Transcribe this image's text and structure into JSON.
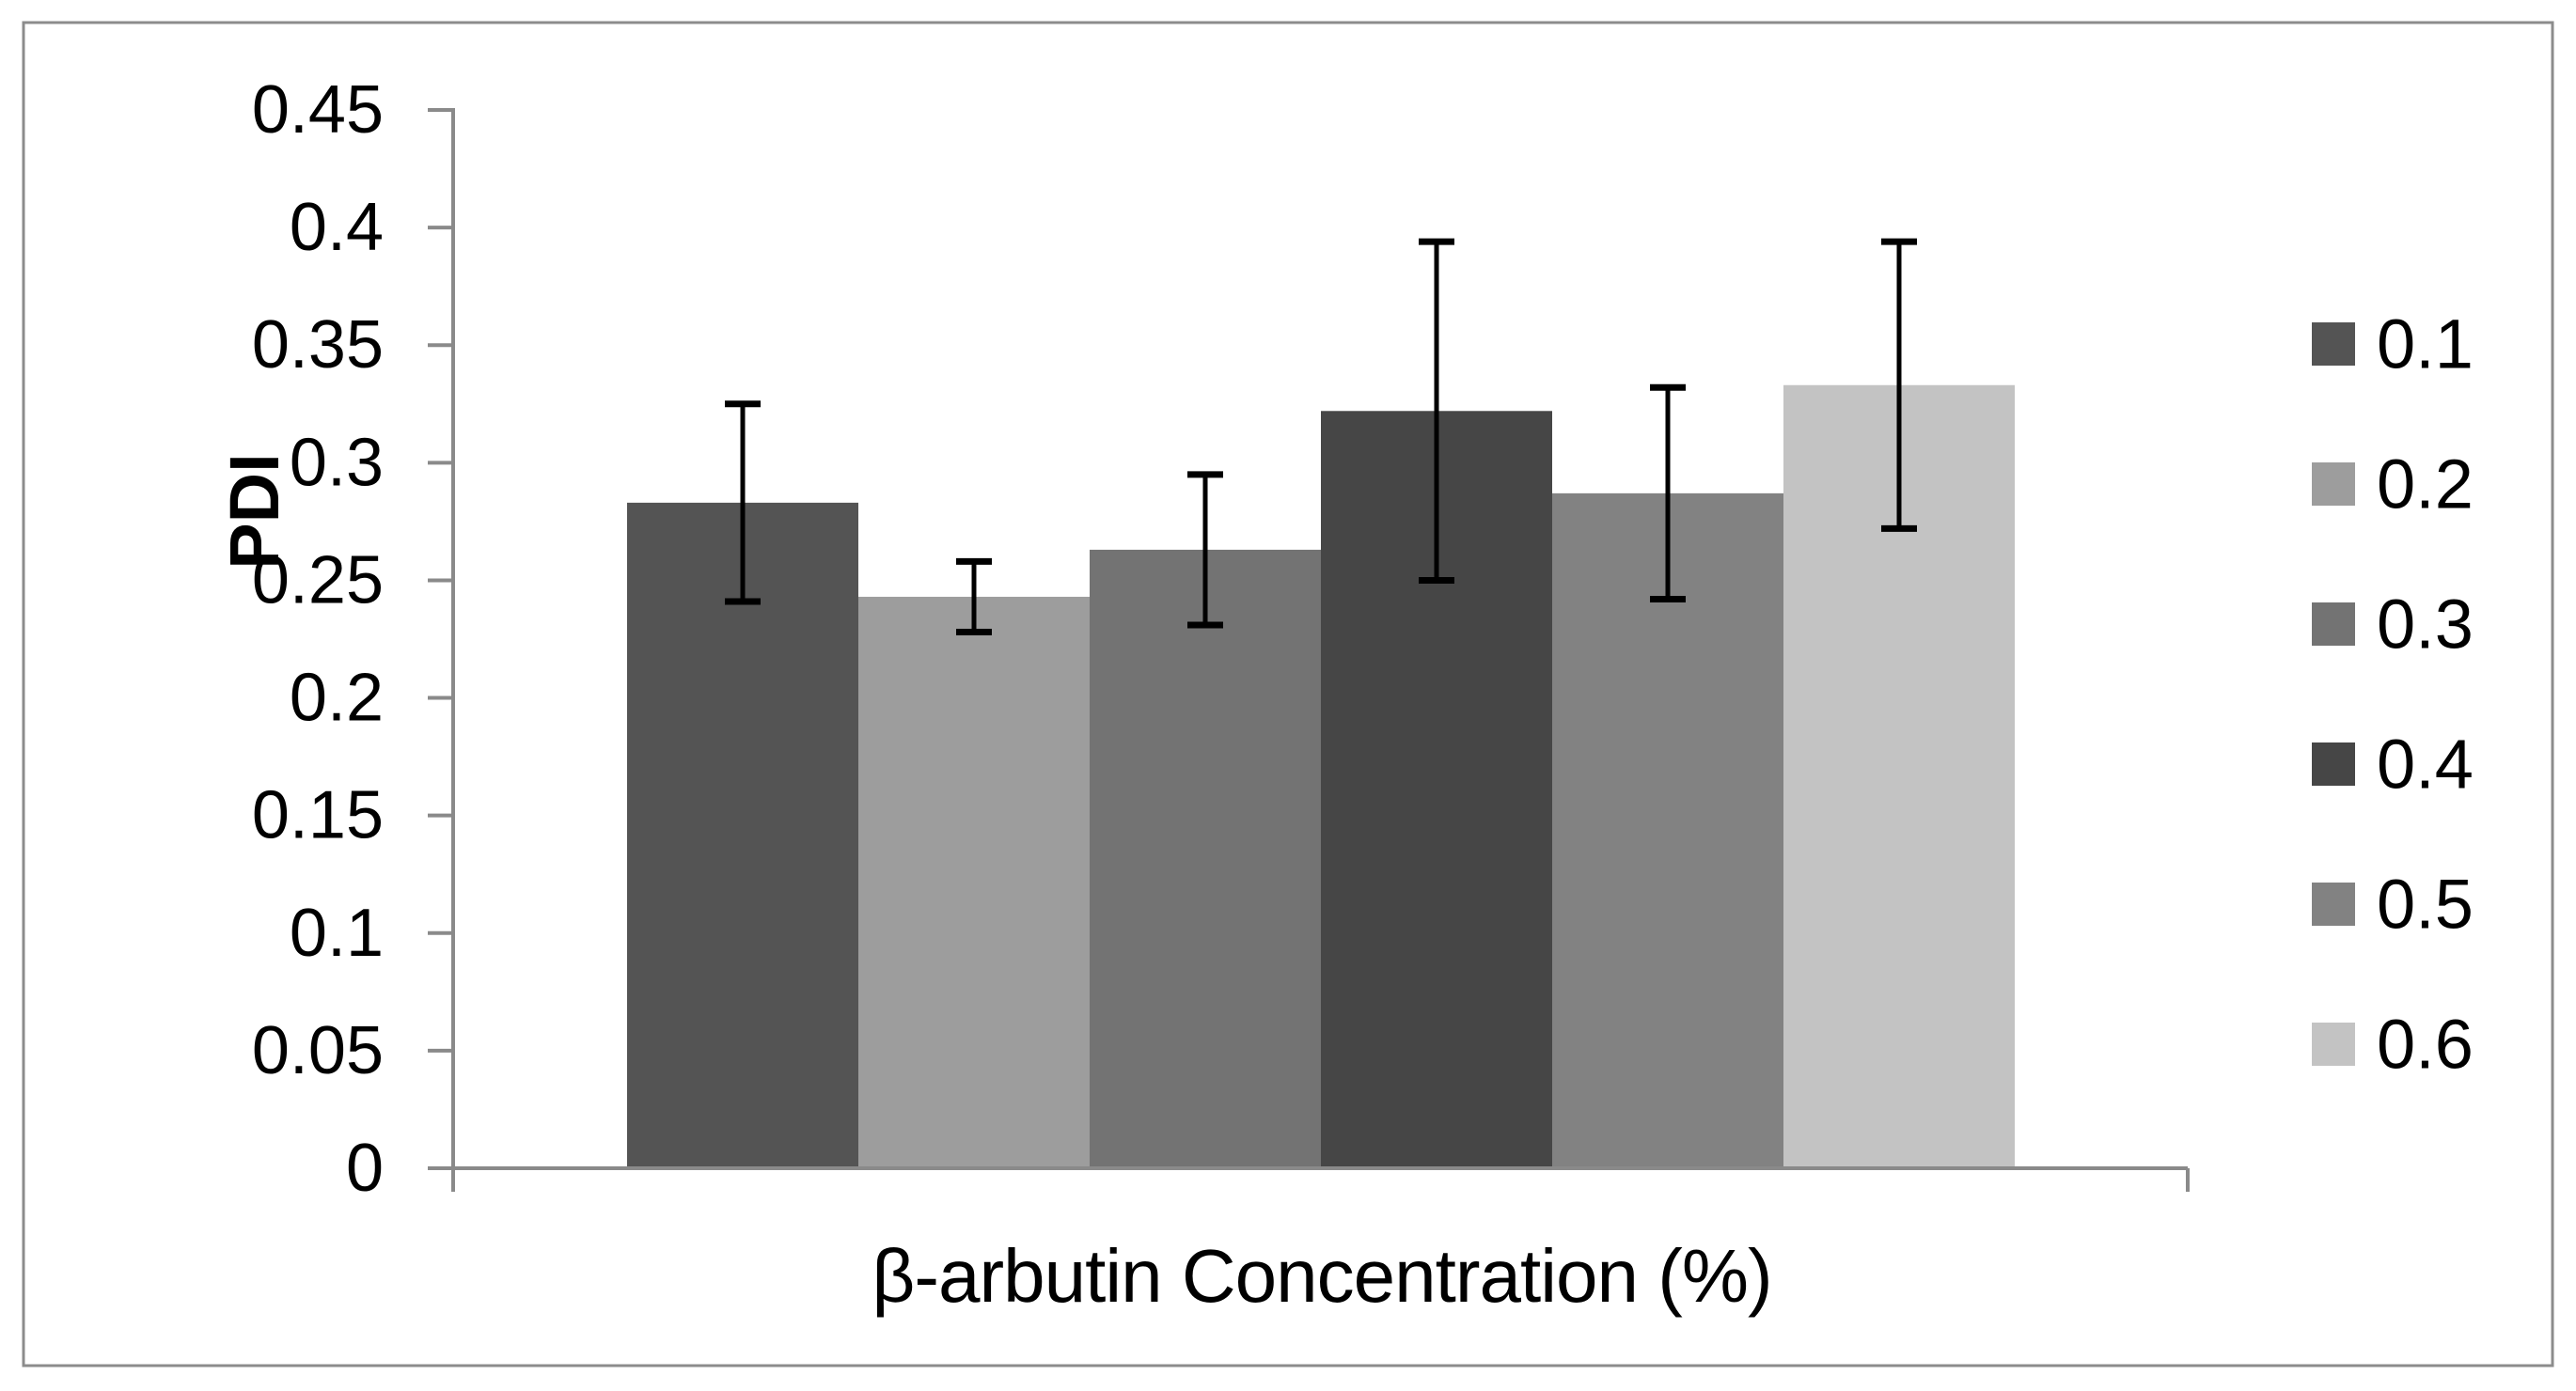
{
  "chart_data": {
    "type": "bar",
    "title": "",
    "xlabel": "β-arbutin Concentration (%)",
    "ylabel": "PDI",
    "ylim": [
      0,
      0.45
    ],
    "ytick_step": 0.05,
    "yticks": [
      "0",
      "0.05",
      "0.1",
      "0.15",
      "0.2",
      "0.25",
      "0.3",
      "0.35",
      "0.4",
      "0.45"
    ],
    "grid": false,
    "legend_position": "right",
    "categories": [
      "0.1",
      "0.2",
      "0.3",
      "0.4",
      "0.5",
      "0.6"
    ],
    "series": [
      {
        "name": "0.1",
        "value": 0.283,
        "error": 0.042,
        "color": "#545454"
      },
      {
        "name": "0.2",
        "value": 0.243,
        "error": 0.015,
        "color": "#9D9D9D"
      },
      {
        "name": "0.3",
        "value": 0.263,
        "error": 0.032,
        "color": "#737373"
      },
      {
        "name": "0.4",
        "value": 0.322,
        "error": 0.072,
        "color": "#464646"
      },
      {
        "name": "0.5",
        "value": 0.287,
        "error": 0.045,
        "color": "#828282"
      },
      {
        "name": "0.6",
        "value": 0.333,
        "error": 0.061,
        "color": "#C3C3C3"
      }
    ]
  },
  "colors": {
    "axis": "#8A8A8A",
    "chart_border": "#8C8C8C",
    "error_bar": "#000000",
    "background": "#FFFFFF",
    "text": "#000000"
  }
}
